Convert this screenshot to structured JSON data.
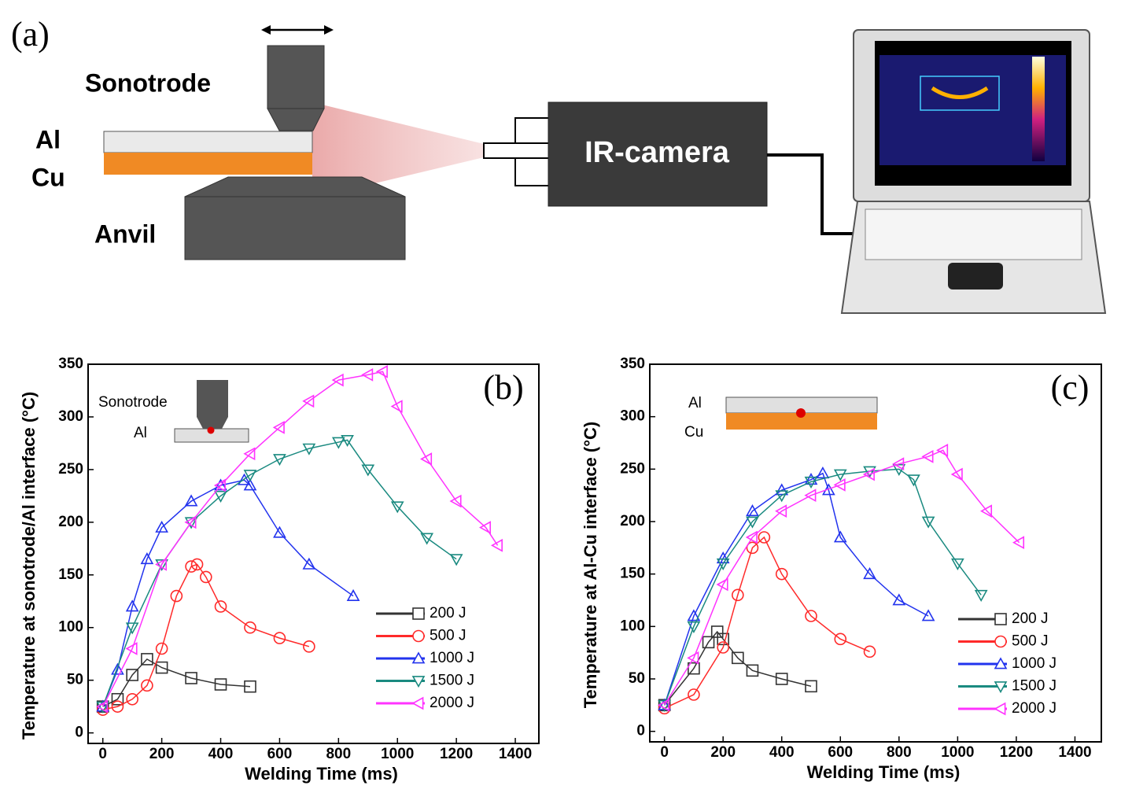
{
  "diagram": {
    "panel_label": "(a)",
    "sonotrode": "Sonotrode",
    "al": "Al",
    "cu": "Cu",
    "anvil": "Anvil",
    "camera": "IR-camera"
  },
  "chart_data": [
    {
      "type": "line",
      "panel_label": "(b)",
      "inset_labels": [
        "Sonotrode",
        "Al"
      ],
      "x_label": "Welding Time (ms)",
      "y_label": "Temperature at sonotrode/Al interface (°C)",
      "xlim": [
        -50,
        1480
      ],
      "ylim": [
        -10,
        350
      ],
      "xticks": [
        0,
        200,
        400,
        600,
        800,
        1000,
        1200,
        1400
      ],
      "yticks": [
        0,
        50,
        100,
        150,
        200,
        250,
        300,
        350
      ],
      "series": [
        {
          "name": "200 J",
          "color": "#333333",
          "marker": "square",
          "x": [
            0,
            50,
            100,
            150,
            200,
            300,
            400,
            500
          ],
          "values": [
            25,
            32,
            55,
            70,
            62,
            52,
            46,
            44
          ]
        },
        {
          "name": "500 J",
          "color": "#ff2a2a",
          "marker": "circle",
          "x": [
            0,
            50,
            100,
            150,
            200,
            250,
            300,
            320,
            350,
            400,
            500,
            600,
            700
          ],
          "values": [
            22,
            25,
            32,
            45,
            80,
            130,
            158,
            160,
            148,
            120,
            100,
            90,
            82
          ]
        },
        {
          "name": "1000 J",
          "color": "#2233ee",
          "marker": "triangle-up",
          "x": [
            0,
            50,
            100,
            150,
            200,
            300,
            400,
            480,
            500,
            600,
            700,
            850
          ],
          "values": [
            25,
            60,
            120,
            165,
            195,
            220,
            235,
            240,
            235,
            190,
            160,
            130
          ]
        },
        {
          "name": "1500 J",
          "color": "#1a8a80",
          "marker": "triangle-down",
          "x": [
            0,
            100,
            200,
            300,
            400,
            500,
            600,
            700,
            800,
            830,
            900,
            1000,
            1100,
            1200
          ],
          "values": [
            25,
            100,
            160,
            200,
            225,
            245,
            260,
            270,
            276,
            278,
            250,
            215,
            185,
            165
          ]
        },
        {
          "name": "2000 J",
          "color": "#ff33ff",
          "marker": "triangle-left",
          "x": [
            0,
            100,
            200,
            300,
            400,
            500,
            600,
            700,
            800,
            900,
            950,
            1000,
            1100,
            1200,
            1300,
            1340
          ],
          "values": [
            25,
            80,
            160,
            200,
            235,
            265,
            290,
            315,
            335,
            340,
            343,
            310,
            260,
            220,
            195,
            178
          ]
        }
      ]
    },
    {
      "type": "line",
      "panel_label": "(c)",
      "inset_labels": [
        "Al",
        "Cu"
      ],
      "x_label": "Welding Time (ms)",
      "y_label": "Temperature at Al-Cu interface (°C)",
      "xlim": [
        -50,
        1490
      ],
      "ylim": [
        -10,
        350
      ],
      "xticks": [
        0,
        200,
        400,
        600,
        800,
        1000,
        1200,
        1400
      ],
      "yticks": [
        0,
        50,
        100,
        150,
        200,
        250,
        300,
        350
      ],
      "series": [
        {
          "name": "200 J",
          "color": "#333333",
          "marker": "square",
          "x": [
            0,
            100,
            150,
            180,
            200,
            250,
            300,
            400,
            500
          ],
          "values": [
            25,
            60,
            85,
            95,
            88,
            70,
            58,
            50,
            43
          ]
        },
        {
          "name": "500 J",
          "color": "#ff2a2a",
          "marker": "circle",
          "x": [
            0,
            100,
            200,
            250,
            300,
            340,
            400,
            500,
            600,
            700
          ],
          "values": [
            22,
            35,
            80,
            130,
            175,
            185,
            150,
            110,
            88,
            76
          ]
        },
        {
          "name": "1000 J",
          "color": "#2233ee",
          "marker": "triangle-up",
          "x": [
            0,
            100,
            200,
            300,
            400,
            500,
            540,
            560,
            600,
            700,
            800,
            900
          ],
          "values": [
            25,
            110,
            165,
            210,
            230,
            240,
            246,
            230,
            185,
            150,
            125,
            110
          ]
        },
        {
          "name": "1500 J",
          "color": "#1a8a80",
          "marker": "triangle-down",
          "x": [
            0,
            100,
            200,
            300,
            400,
            500,
            600,
            700,
            800,
            850,
            900,
            1000,
            1080
          ],
          "values": [
            25,
            100,
            160,
            200,
            225,
            238,
            245,
            248,
            250,
            240,
            200,
            160,
            130
          ]
        },
        {
          "name": "2000 J",
          "color": "#ff33ff",
          "marker": "triangle-left",
          "x": [
            0,
            100,
            200,
            300,
            400,
            500,
            600,
            700,
            800,
            900,
            950,
            1000,
            1100,
            1210
          ],
          "values": [
            25,
            70,
            140,
            185,
            210,
            225,
            235,
            245,
            255,
            262,
            268,
            245,
            210,
            180
          ]
        }
      ]
    }
  ]
}
